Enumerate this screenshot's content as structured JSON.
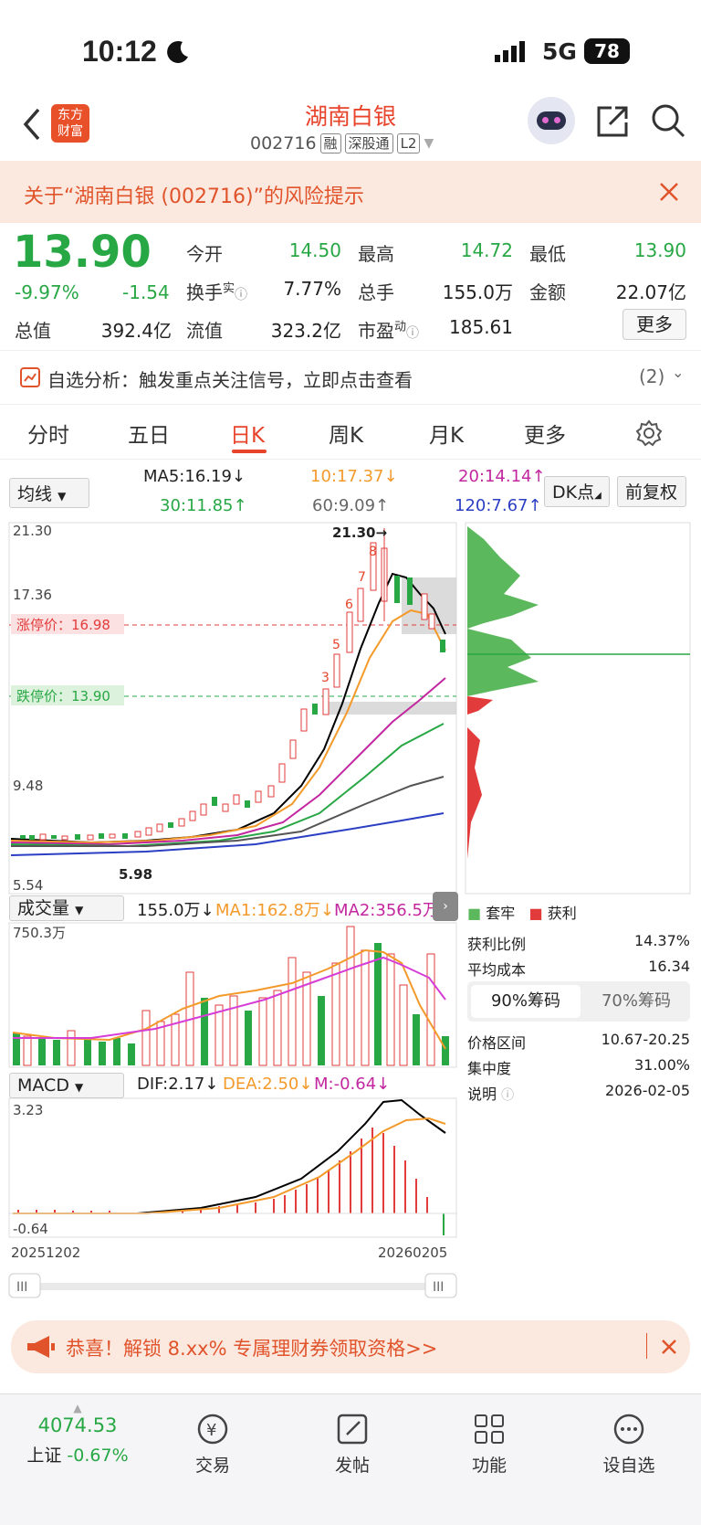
{
  "status_bar": {
    "time": "10:12",
    "network": "5G",
    "battery": "78"
  },
  "header": {
    "logo_line1": "东方",
    "logo_line2": "财富",
    "title": "湖南白银",
    "code": "002716",
    "tags": [
      "融",
      "深股通",
      "L2"
    ]
  },
  "risk_banner": {
    "text": "关于“湖南白银 (002716)”的风险提示"
  },
  "quote": {
    "price": "13.90",
    "change_pct": "-9.97%",
    "change_abs": "-1.54",
    "market_cap_label": "总值",
    "market_cap": "392.4亿",
    "open_label": "今开",
    "open": "14.50",
    "high_label": "最高",
    "high": "14.72",
    "low_label": "最低",
    "low": "13.90",
    "turnover_label": "换手",
    "turnover_sup": "实",
    "turnover": "7.77%",
    "volume_label": "总手",
    "volume": "155.0万",
    "amount_label": "金额",
    "amount": "22.07亿",
    "float_label": "流值",
    "float_cap": "323.2亿",
    "pe_label": "市盈",
    "pe_sup": "动",
    "pe": "185.61",
    "more_button": "更多"
  },
  "analysis": {
    "label": "自选分析：触发重点关注信号，立即点击查看",
    "count": "(2)"
  },
  "tabs": [
    "分时",
    "五日",
    "日K",
    "周K",
    "月K",
    "更多"
  ],
  "active_tab": "日K",
  "ma_row": {
    "select": "均线",
    "ma5": "MA5:16.19↓",
    "ma10": "10:17.37↓",
    "ma20": "20:14.14↑",
    "ma30": "30:11.85↑",
    "ma60": "60:9.09↑",
    "ma120": "120:7.67↑",
    "dk_button": "DK点",
    "adjust_button": "前复权"
  },
  "kline": {
    "y_labels": [
      "21.30",
      "17.36",
      "9.48",
      "5.54"
    ],
    "high_marker": "21.30→",
    "low_marker": "5.98",
    "limit_up_label": "涨停价：16.98",
    "limit_down_label": "跌停价：13.90"
  },
  "volume": {
    "select": "成交量",
    "value": "155.0万↓",
    "ma1": "MA1:162.8万↓",
    "ma2": "MA2:356.5万↓",
    "max_label": "750.3万"
  },
  "macd": {
    "select": "MACD",
    "dif": "DIF:2.17↓",
    "dea": "DEA:2.50↓",
    "m": "M:-0.64↓",
    "top": "3.23",
    "bottom": "-0.64",
    "date_start": "20251202",
    "date_end": "20260205"
  },
  "chip": {
    "legend_trapped": "套牢",
    "legend_profit": "获利",
    "profit_ratio_label": "获利比例",
    "profit_ratio": "14.37%",
    "avg_cost_label": "平均成本",
    "avg_cost": "16.34",
    "tab_90": "90%筹码",
    "tab_70": "70%筹码",
    "range_label": "价格区间",
    "range": "10.67-20.25",
    "concentration_label": "集中度",
    "concentration": "31.00%",
    "note_label": "说明",
    "note_date": "2026-02-05"
  },
  "promo": {
    "text": "恭喜！解锁 8.xx% 专属理财券领取资格>>"
  },
  "bottom_nav": {
    "index_value": "4074.53",
    "index_name": "上证",
    "index_change": "-0.67%",
    "items": [
      "交易",
      "发帖",
      "功能",
      "设自选"
    ]
  },
  "colors": {
    "up": "#e23b3b",
    "down": "#28a745",
    "brand": "#e8442c"
  }
}
